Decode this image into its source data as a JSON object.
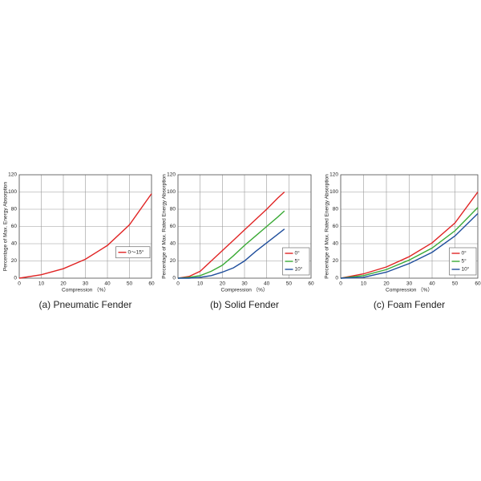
{
  "chart_data": [
    {
      "type": "line",
      "caption": "(a) Pneumatic Fender",
      "xlabel": "Compression （%）",
      "ylabel": "Percentage of Max. Energy Absorption",
      "x": [
        0,
        10,
        20,
        30,
        40,
        50,
        60
      ],
      "series": [
        {
          "name": "0～15°",
          "color": "#e02424",
          "values": [
            0,
            4,
            11,
            22,
            38,
            62,
            98
          ]
        }
      ],
      "xlim": [
        0,
        60
      ],
      "xticks": [
        0,
        10,
        20,
        30,
        40,
        50,
        60
      ],
      "ylim": [
        0,
        120
      ],
      "yticks": [
        0,
        20,
        40,
        60,
        80,
        100,
        120
      ],
      "grid": true,
      "legend": "right"
    },
    {
      "type": "line",
      "caption": "(b) Solid Fender",
      "xlabel": "Compression （%）",
      "ylabel": "Percentage of Max. Rated Energy Absorption",
      "x": [
        0,
        5,
        10,
        15,
        20,
        25,
        30,
        35,
        40,
        45,
        48
      ],
      "series": [
        {
          "name": "0°",
          "color": "#e02424",
          "values": [
            0,
            2,
            8,
            20,
            32,
            44,
            56,
            68,
            80,
            93,
            100
          ]
        },
        {
          "name": "5°",
          "color": "#3aaa35",
          "values": [
            0,
            1,
            3,
            8,
            15,
            26,
            38,
            49,
            60,
            71,
            78
          ]
        },
        {
          "name": "10°",
          "color": "#1f4e9c",
          "values": [
            0,
            0,
            1,
            3,
            7,
            12,
            20,
            31,
            41,
            51,
            57
          ]
        }
      ],
      "xlim": [
        0,
        60
      ],
      "xticks": [
        0,
        10,
        20,
        30,
        40,
        50,
        60
      ],
      "ylim": [
        0,
        120
      ],
      "yticks": [
        0,
        20,
        40,
        60,
        80,
        100,
        120
      ],
      "grid": true,
      "legend": "lower right"
    },
    {
      "type": "line",
      "caption": "(c) Foam Fender",
      "xlabel": "Compression （%）",
      "ylabel": "Percentage of Max. Rated Energy Absorption",
      "x": [
        0,
        10,
        20,
        30,
        40,
        50,
        60
      ],
      "series": [
        {
          "name": "0°",
          "color": "#e02424",
          "values": [
            0,
            5,
            13,
            25,
            41,
            64,
            100
          ]
        },
        {
          "name": "5°",
          "color": "#3aaa35",
          "values": [
            0,
            3,
            10,
            21,
            35,
            55,
            82
          ]
        },
        {
          "name": "10°",
          "color": "#1f4e9c",
          "values": [
            0,
            1,
            7,
            17,
            30,
            49,
            75
          ]
        }
      ],
      "xlim": [
        0,
        60
      ],
      "xticks": [
        0,
        10,
        20,
        30,
        40,
        50,
        60
      ],
      "ylim": [
        0,
        120
      ],
      "yticks": [
        0,
        20,
        40,
        60,
        80,
        100,
        120
      ],
      "grid": true,
      "legend": "lower right"
    }
  ]
}
